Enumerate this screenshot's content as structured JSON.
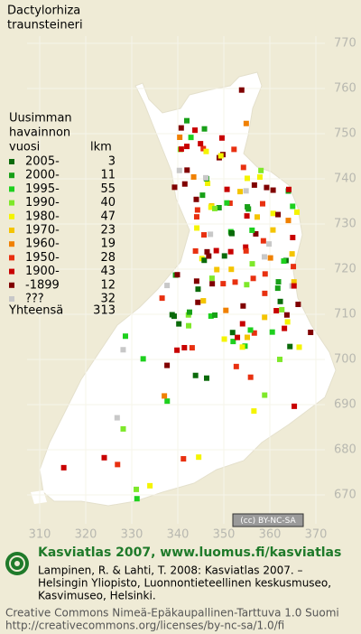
{
  "title": [
    "Dactylorhiza",
    "traunsteineri"
  ],
  "legend": {
    "heading": [
      "Uusimman",
      "havainnon",
      "vuosi"
    ],
    "count_heading": "lkm",
    "rows": [
      {
        "label": "2005-",
        "count": 3,
        "color": "#0a6a0a"
      },
      {
        "label": "2000-",
        "count": 11,
        "color": "#18a018"
      },
      {
        "label": "1995-",
        "count": 55,
        "color": "#1ed01e"
      },
      {
        "label": "1990-",
        "count": 40,
        "color": "#7ee82a"
      },
      {
        "label": "1980-",
        "count": 47,
        "color": "#f4f400"
      },
      {
        "label": "1970-",
        "count": 23,
        "color": "#f4c400"
      },
      {
        "label": "1960-",
        "count": 19,
        "color": "#f08000"
      },
      {
        "label": "1950-",
        "count": 28,
        "color": "#e83010"
      },
      {
        "label": "1900-",
        "count": 43,
        "color": "#c80000"
      },
      {
        "label": "-1899",
        "count": 12,
        "color": "#800000"
      },
      {
        "label": "???",
        "count": 32,
        "color": "#c8c8c8"
      }
    ],
    "total_label": "Yhteensä",
    "total": 313
  },
  "grid": {
    "y_labels": [
      770,
      760,
      750,
      740,
      730,
      720,
      710,
      700,
      690,
      680,
      670
    ],
    "x_labels": [
      310,
      320,
      330,
      340,
      350,
      360,
      370
    ]
  },
  "license_badge": "(cc) BY-NC-SA",
  "footer": {
    "headline": "Kasviatlas 2007, www.luomus.fi/kasviatlas",
    "citation": [
      "Lampinen, R. & Lahti, T. 2008: Kasviatlas 2007. –",
      "Helsingin Yliopisto, Luonnontieteellinen keskusmuseo,",
      "Kasvimuseo, Helsinki."
    ],
    "license": [
      "Creative Commons Nimeä-Epäkaupallinen-Tarttuva 1.0 Suomi",
      "http://creativecommons.org/licenses/by-nc-sa/1.0/fi"
    ]
  }
}
